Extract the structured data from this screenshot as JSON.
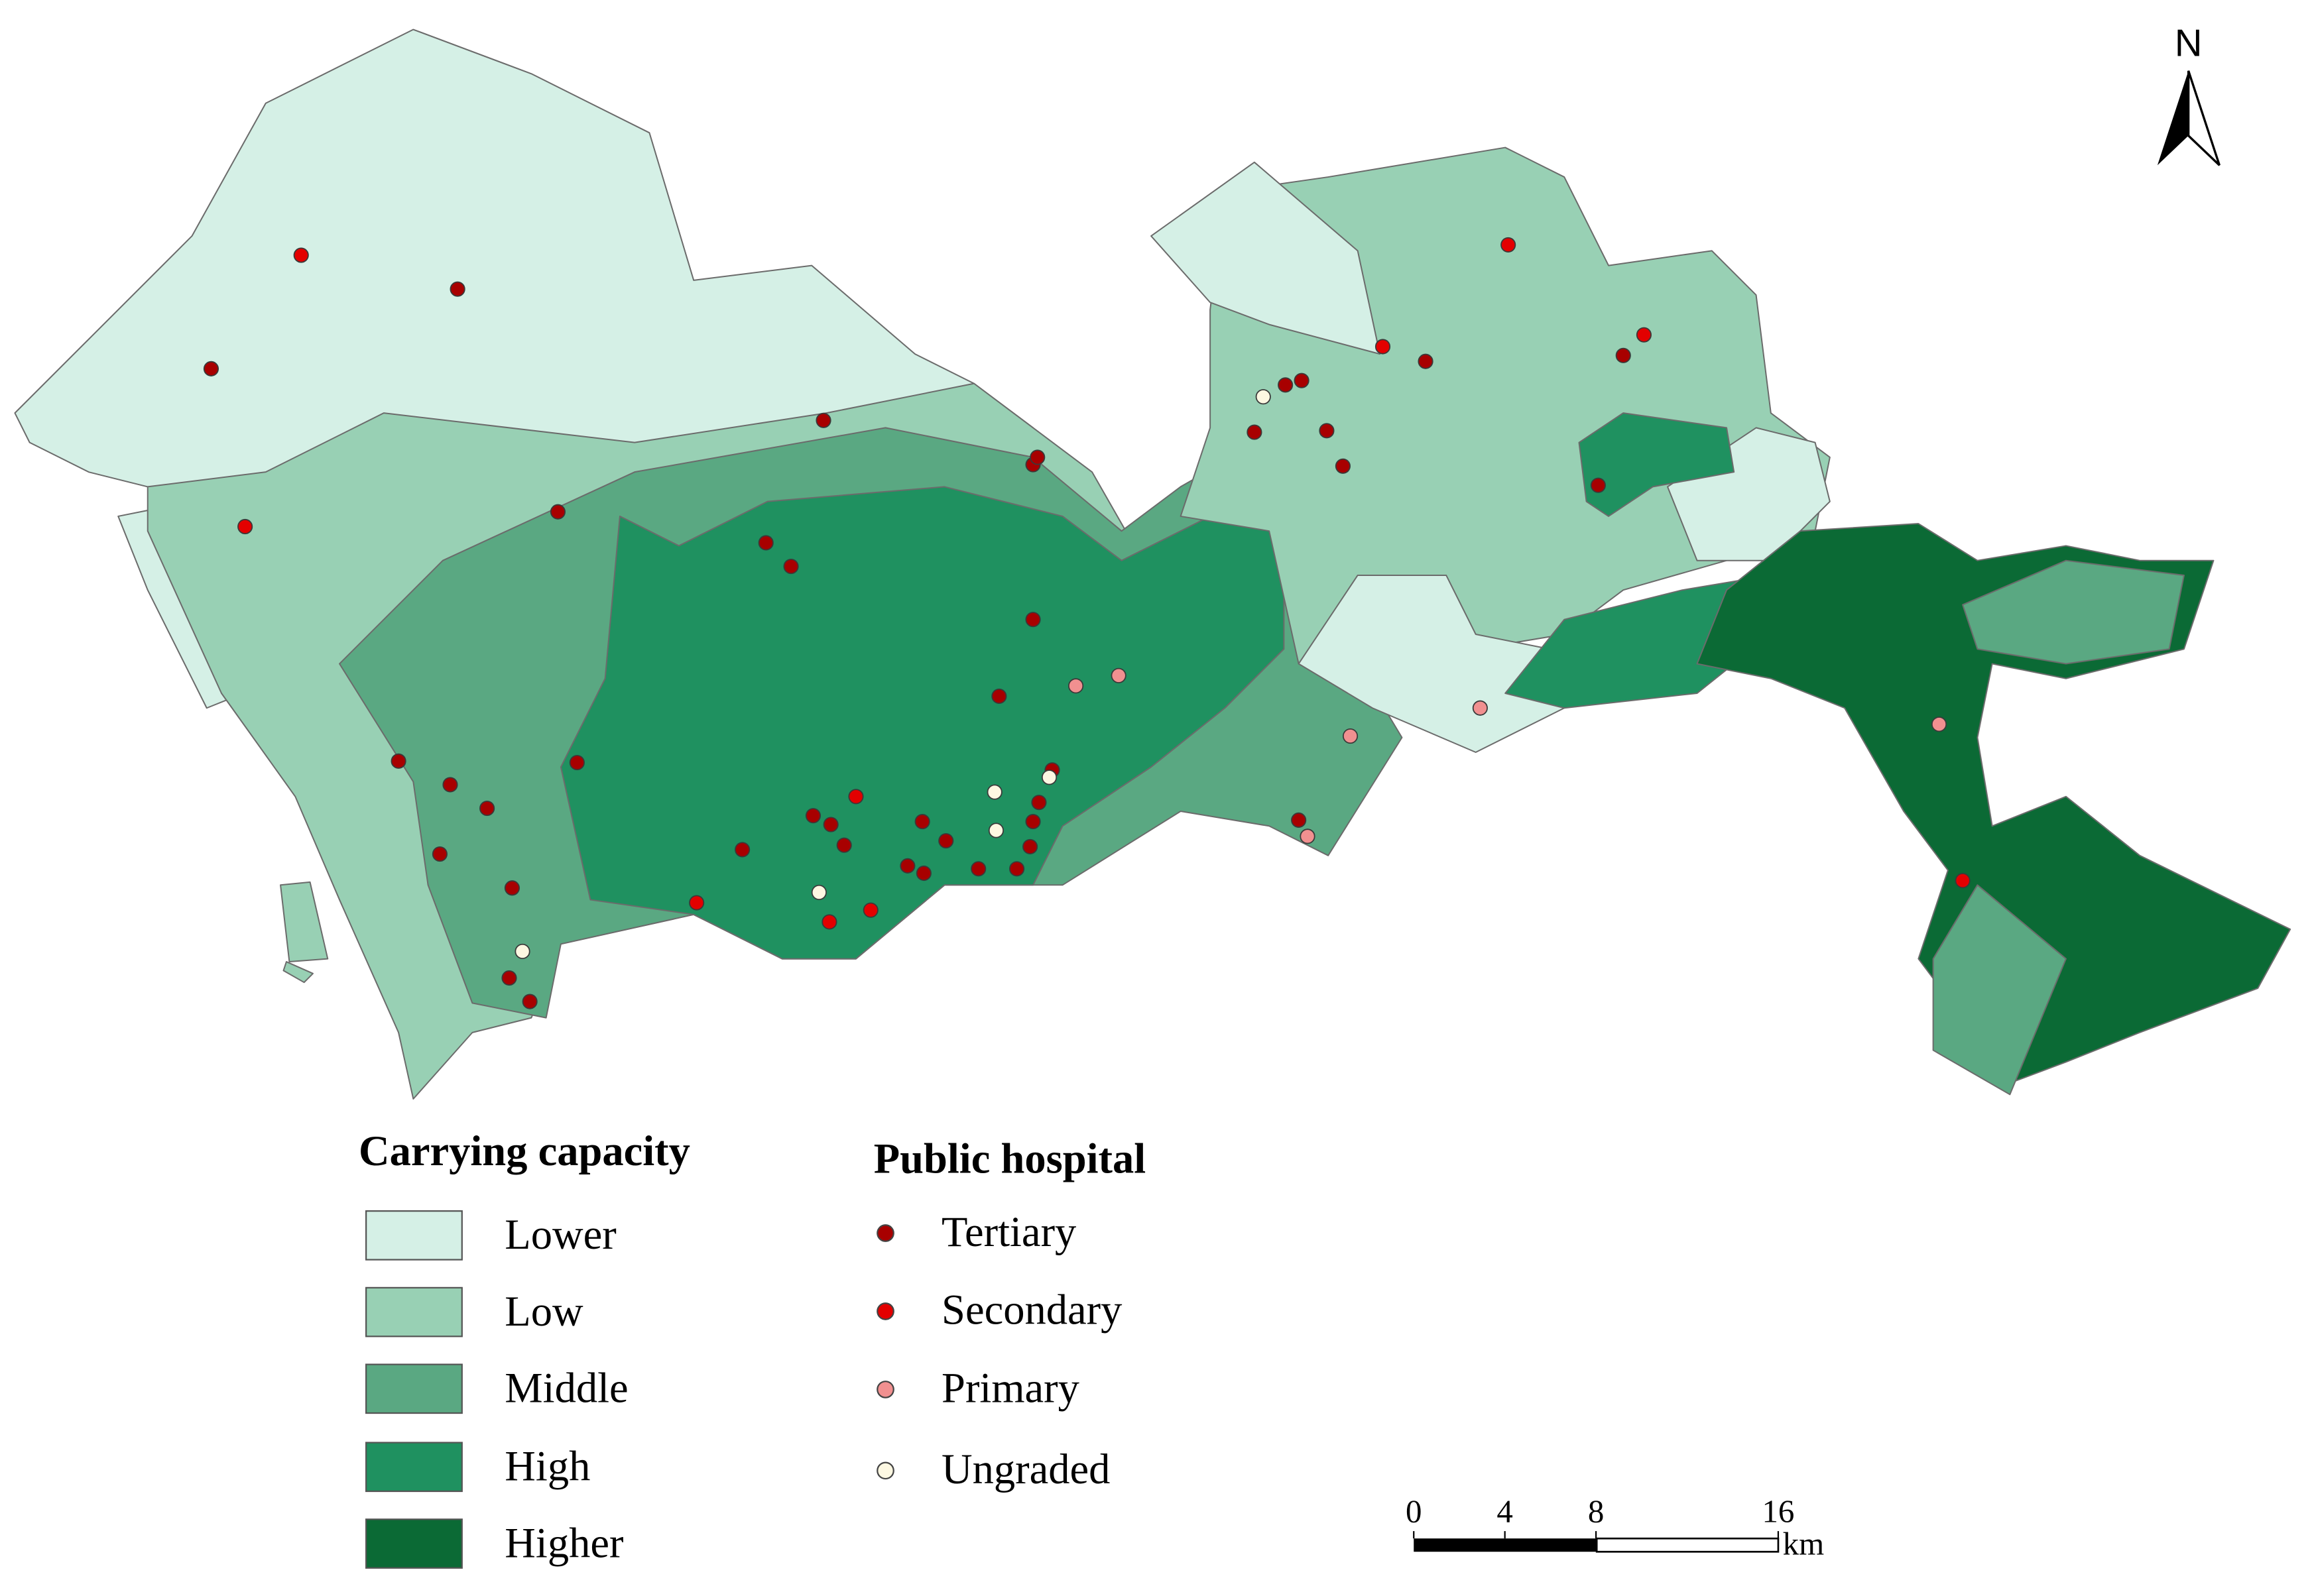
{
  "north_arrow": "N",
  "capacity_legend": {
    "title": "Carrying capacity",
    "items": [
      {
        "label": "Lower",
        "color": "#d5f0e6"
      },
      {
        "label": "Low",
        "color": "#98d0b4"
      },
      {
        "label": "Middle",
        "color": "#5aa882"
      },
      {
        "label": "High",
        "color": "#1f9160"
      },
      {
        "label": "Higher",
        "color": "#0b6a35"
      }
    ]
  },
  "hospital_legend": {
    "title": "Public hospital",
    "items": [
      {
        "label": "Tertiary",
        "color": "#a80000"
      },
      {
        "label": "Secondary",
        "color": "#e30000"
      },
      {
        "label": "Primary",
        "color": "#f19090"
      },
      {
        "label": "Ungraded",
        "color": "#fdf8e2"
      }
    ]
  },
  "scale_bar": {
    "ticks": [
      0,
      4,
      8,
      16
    ],
    "unit": "km"
  }
}
